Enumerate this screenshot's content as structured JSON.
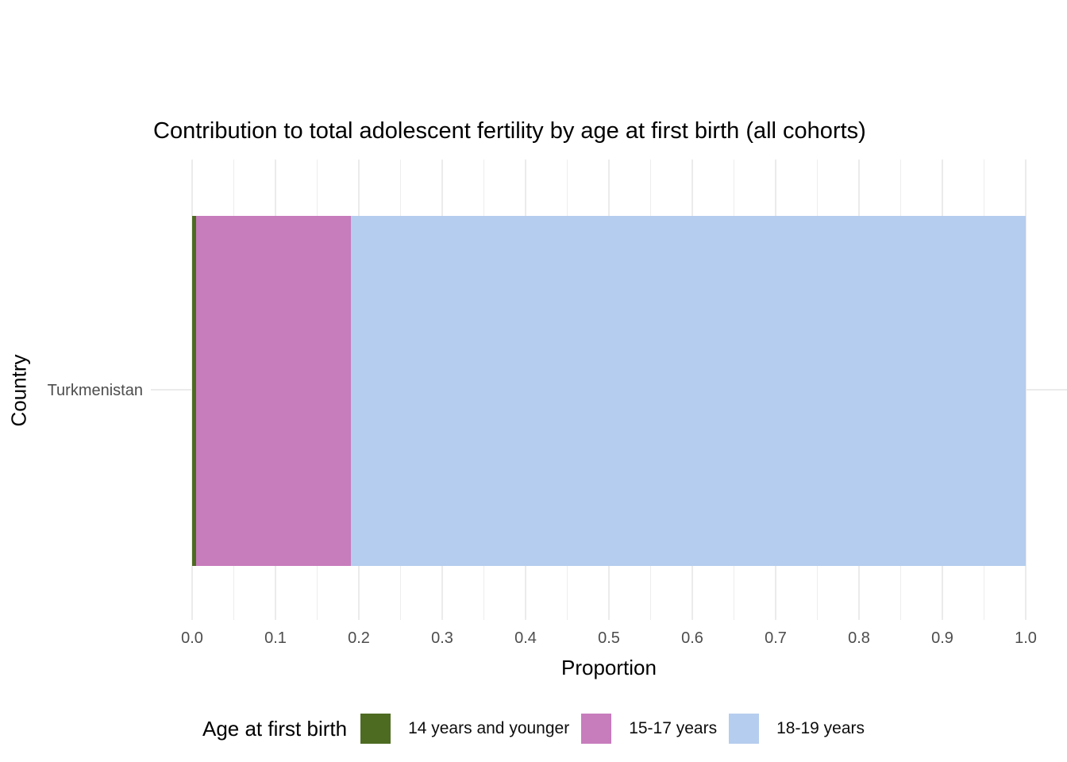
{
  "chart_data": {
    "type": "bar",
    "orientation": "horizontal",
    "stacked": true,
    "title": "Contribution to total adolescent fertility by age at first birth (all cohorts)",
    "xlabel": "Proportion",
    "ylabel": "Country",
    "categories": [
      "Turkmenistan"
    ],
    "series": [
      {
        "name": "14 years and younger",
        "color": "#4D6B21",
        "values": [
          0.005
        ]
      },
      {
        "name": "15-17 years",
        "color": "#C77CBC",
        "values": [
          0.185
        ]
      },
      {
        "name": "18-19 years",
        "color": "#B5CDEE",
        "values": [
          0.81
        ]
      }
    ],
    "xlim": [
      0,
      1
    ],
    "x_tick_labels": [
      "0.0",
      "0.1",
      "0.2",
      "0.3",
      "0.4",
      "0.5",
      "0.6",
      "0.7",
      "0.8",
      "0.9",
      "1.0"
    ],
    "x_major_tick_step": 0.1,
    "x_minor_tick_step": 0.05,
    "grid": {
      "show": true,
      "major_color": "#EBEBEB",
      "minor_color": "#EDEDED"
    },
    "legend": {
      "title": "Age at first birth",
      "position": "bottom"
    },
    "axis_text_color": "#4D4D4D"
  }
}
